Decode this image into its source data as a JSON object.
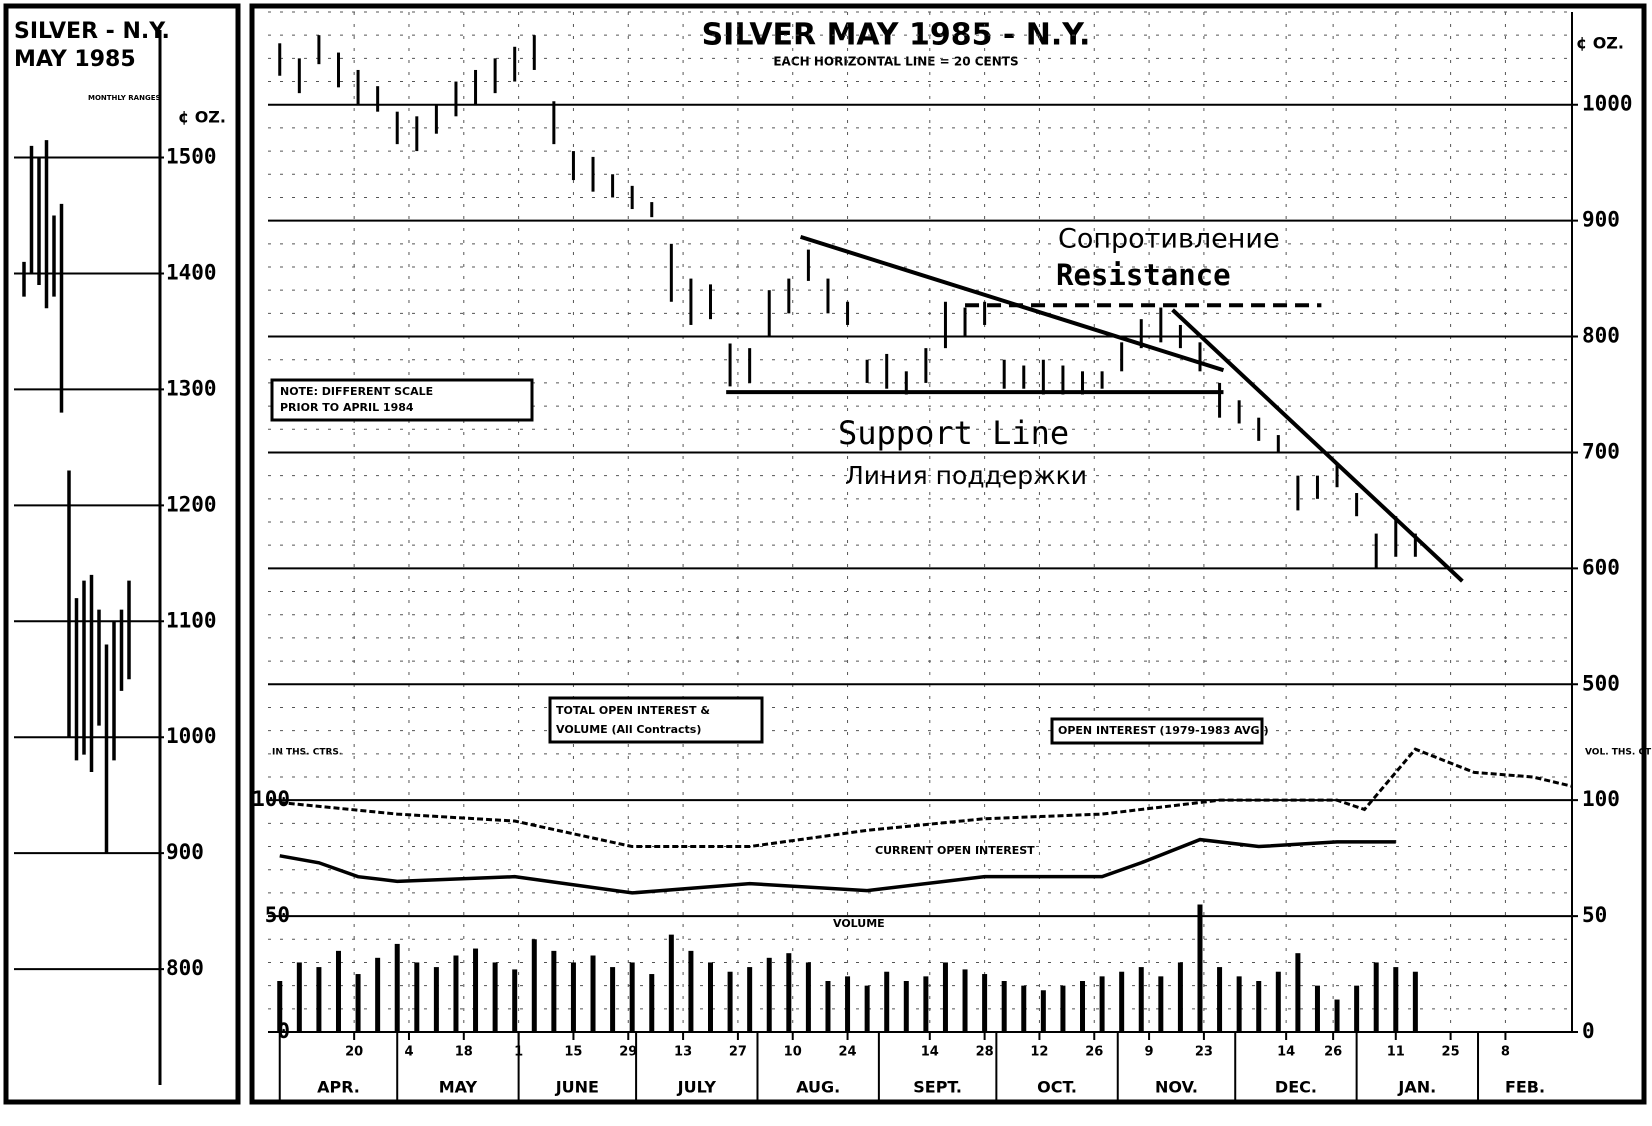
{
  "chart_data": [
    {
      "type": "hilo",
      "title": "SILVER - N.Y.",
      "subtitle": "MAY 1985",
      "note": "MONTHLY RANGES",
      "y_label": "¢ OZ.",
      "categories": [
        null,
        null,
        null,
        null,
        null,
        null,
        null,
        null,
        null,
        null,
        null,
        null,
        null,
        null,
        null
      ],
      "high": [
        1410,
        1510,
        1500,
        1515,
        1450,
        1460,
        1230,
        1120,
        1135,
        1140,
        1110,
        1080,
        1100,
        1110,
        1135
      ],
      "low": [
        1380,
        1400,
        1390,
        1370,
        1380,
        1280,
        1000,
        980,
        985,
        970,
        1010,
        900,
        980,
        1040,
        1050
      ],
      "ylim": [
        700,
        1610
      ],
      "yticks": [
        800,
        900,
        1000,
        1100,
        1200,
        1300,
        1400,
        1500
      ]
    },
    {
      "type": "hilo",
      "title": "SILVER MAY 1985 - N.Y.",
      "subtitle": "EACH HORIZONTAL LINE = 20 CENTS",
      "y_label": "¢ OZ.",
      "y2_label_left": "IN THS. CTRS.",
      "y2_label_right": "VOL. THS. CTRS.",
      "x": [
        0,
        5,
        10,
        15,
        20,
        25,
        30,
        35,
        40,
        45,
        50,
        55,
        60,
        65,
        70,
        75,
        80,
        85,
        90,
        95,
        100,
        105,
        110,
        115,
        120,
        125,
        130,
        135,
        140,
        145,
        150,
        155,
        160,
        165,
        170,
        175,
        180,
        185,
        190,
        195,
        200,
        205,
        210,
        215,
        220,
        225,
        230,
        235,
        240,
        245,
        250,
        255,
        260,
        265,
        270,
        275,
        280,
        285,
        290
      ],
      "high": [
        1053,
        1040,
        1060,
        1045,
        1030,
        1016,
        994,
        990,
        1000,
        1020,
        1030,
        1040,
        1050,
        1060,
        1003,
        960,
        955,
        940,
        930,
        916,
        880,
        850,
        845,
        794,
        790,
        840,
        850,
        875,
        850,
        830,
        780,
        785,
        770,
        790,
        830,
        825,
        830,
        780,
        775,
        780,
        775,
        770,
        770,
        795,
        815,
        825,
        810,
        795,
        760,
        745,
        730,
        715,
        680,
        680,
        690,
        665,
        630,
        645,
        630
      ],
      "low": [
        1025,
        1010,
        1035,
        1015,
        1000,
        994,
        966,
        960,
        975,
        990,
        1000,
        1010,
        1020,
        1030,
        966,
        935,
        925,
        920,
        910,
        903,
        830,
        810,
        815,
        757,
        760,
        800,
        820,
        848,
        820,
        810,
        760,
        755,
        750,
        760,
        790,
        800,
        810,
        755,
        755,
        750,
        750,
        750,
        755,
        770,
        790,
        795,
        790,
        770,
        730,
        725,
        710,
        700,
        650,
        660,
        670,
        645,
        600,
        610,
        610
      ],
      "ylim": [
        200,
        1080
      ],
      "yticks": [
        500,
        600,
        700,
        800,
        900,
        1000
      ],
      "y2lim": [
        0,
        440
      ],
      "y2ticks": [
        0,
        50,
        100
      ],
      "xlim": [
        -3,
        330
      ],
      "xticks": [
        {
          "value": 19,
          "label": "20"
        },
        {
          "value": 33,
          "label": "4"
        },
        {
          "value": 47,
          "label": "18"
        },
        {
          "value": 61,
          "label": "1"
        },
        {
          "value": 75,
          "label": "15"
        },
        {
          "value": 89,
          "label": "29"
        },
        {
          "value": 103,
          "label": "13"
        },
        {
          "value": 117,
          "label": "27"
        },
        {
          "value": 131,
          "label": "10"
        },
        {
          "value": 145,
          "label": "24"
        },
        {
          "value": 166,
          "label": "14"
        },
        {
          "value": 180,
          "label": "28"
        },
        {
          "value": 194,
          "label": "12"
        },
        {
          "value": 208,
          "label": "26"
        },
        {
          "value": 222,
          "label": "9"
        },
        {
          "value": 236,
          "label": "23"
        },
        {
          "value": 257,
          "label": "14"
        },
        {
          "value": 269,
          "label": "26"
        },
        {
          "value": 285,
          "label": "11"
        },
        {
          "value": 299,
          "label": "25"
        },
        {
          "value": 313,
          "label": "8"
        }
      ],
      "months": [
        {
          "value": 0,
          "label": "APR."
        },
        {
          "value": 30,
          "label": "MAY"
        },
        {
          "value": 61,
          "label": "JUNE"
        },
        {
          "value": 91,
          "label": "JULY"
        },
        {
          "value": 122,
          "label": "AUG."
        },
        {
          "value": 153,
          "label": "SEPT."
        },
        {
          "value": 183,
          "label": "OCT."
        },
        {
          "value": 214,
          "label": "NOV."
        },
        {
          "value": 244,
          "label": "DEC."
        },
        {
          "value": 275,
          "label": "JAN."
        },
        {
          "value": 306,
          "label": "FEB."
        }
      ],
      "series": [
        {
          "name": "OPEN INTEREST (1979-1983 AVG.)",
          "axis": "y2",
          "type": "line",
          "x": [
            0,
            30,
            60,
            90,
            120,
            150,
            180,
            210,
            240,
            270,
            277,
            290,
            305,
            320,
            330
          ],
          "values": [
            99,
            94,
            91,
            80,
            80,
            87,
            92,
            94,
            100,
            100,
            96,
            122,
            112,
            110,
            106
          ]
        },
        {
          "name": "CURRENT OPEN INTEREST",
          "axis": "y2",
          "type": "line",
          "x": [
            0,
            10,
            20,
            30,
            60,
            90,
            120,
            150,
            180,
            210,
            220,
            235,
            250,
            270,
            285
          ],
          "values": [
            76,
            73,
            67,
            65,
            67,
            60,
            64,
            61,
            67,
            67,
            73,
            83,
            80,
            82,
            82
          ]
        },
        {
          "name": "VOLUME",
          "axis": "y2",
          "type": "bar",
          "values": [
            22,
            30,
            28,
            35,
            25,
            32,
            38,
            30,
            28,
            33,
            36,
            30,
            27,
            40,
            35,
            30,
            33,
            28,
            30,
            25,
            42,
            35,
            30,
            26,
            28,
            32,
            34,
            30,
            22,
            24,
            20,
            26,
            22,
            24,
            30,
            27,
            25,
            22,
            20,
            18,
            20,
            22,
            24,
            26,
            28,
            24,
            30,
            55,
            28,
            24,
            22,
            26,
            34,
            20,
            14,
            20,
            30,
            28,
            26
          ]
        }
      ],
      "trend_lines": [
        {
          "x": [
            133,
            241
          ],
          "y": [
            886,
            771
          ],
          "dashed": false
        },
        {
          "x": [
            228,
            302
          ],
          "y": [
            823,
            589
          ],
          "dashed": false
        },
        {
          "x": [
            175,
            266
          ],
          "y": [
            827,
            827
          ],
          "dashed": true
        },
        {
          "x": [
            114,
            241
          ],
          "y": [
            752,
            752
          ],
          "dashed": false
        }
      ],
      "annotations": [
        "Сопротивление",
        "Resistance",
        "Support Line",
        "Линия поддержки"
      ],
      "note": [
        "NOTE: DIFFERENT SCALE",
        "PRIOR TO APRIL 1984"
      ],
      "box": [
        "TOTAL OPEN INTEREST &",
        "VOLUME (All Contracts)"
      ]
    }
  ]
}
